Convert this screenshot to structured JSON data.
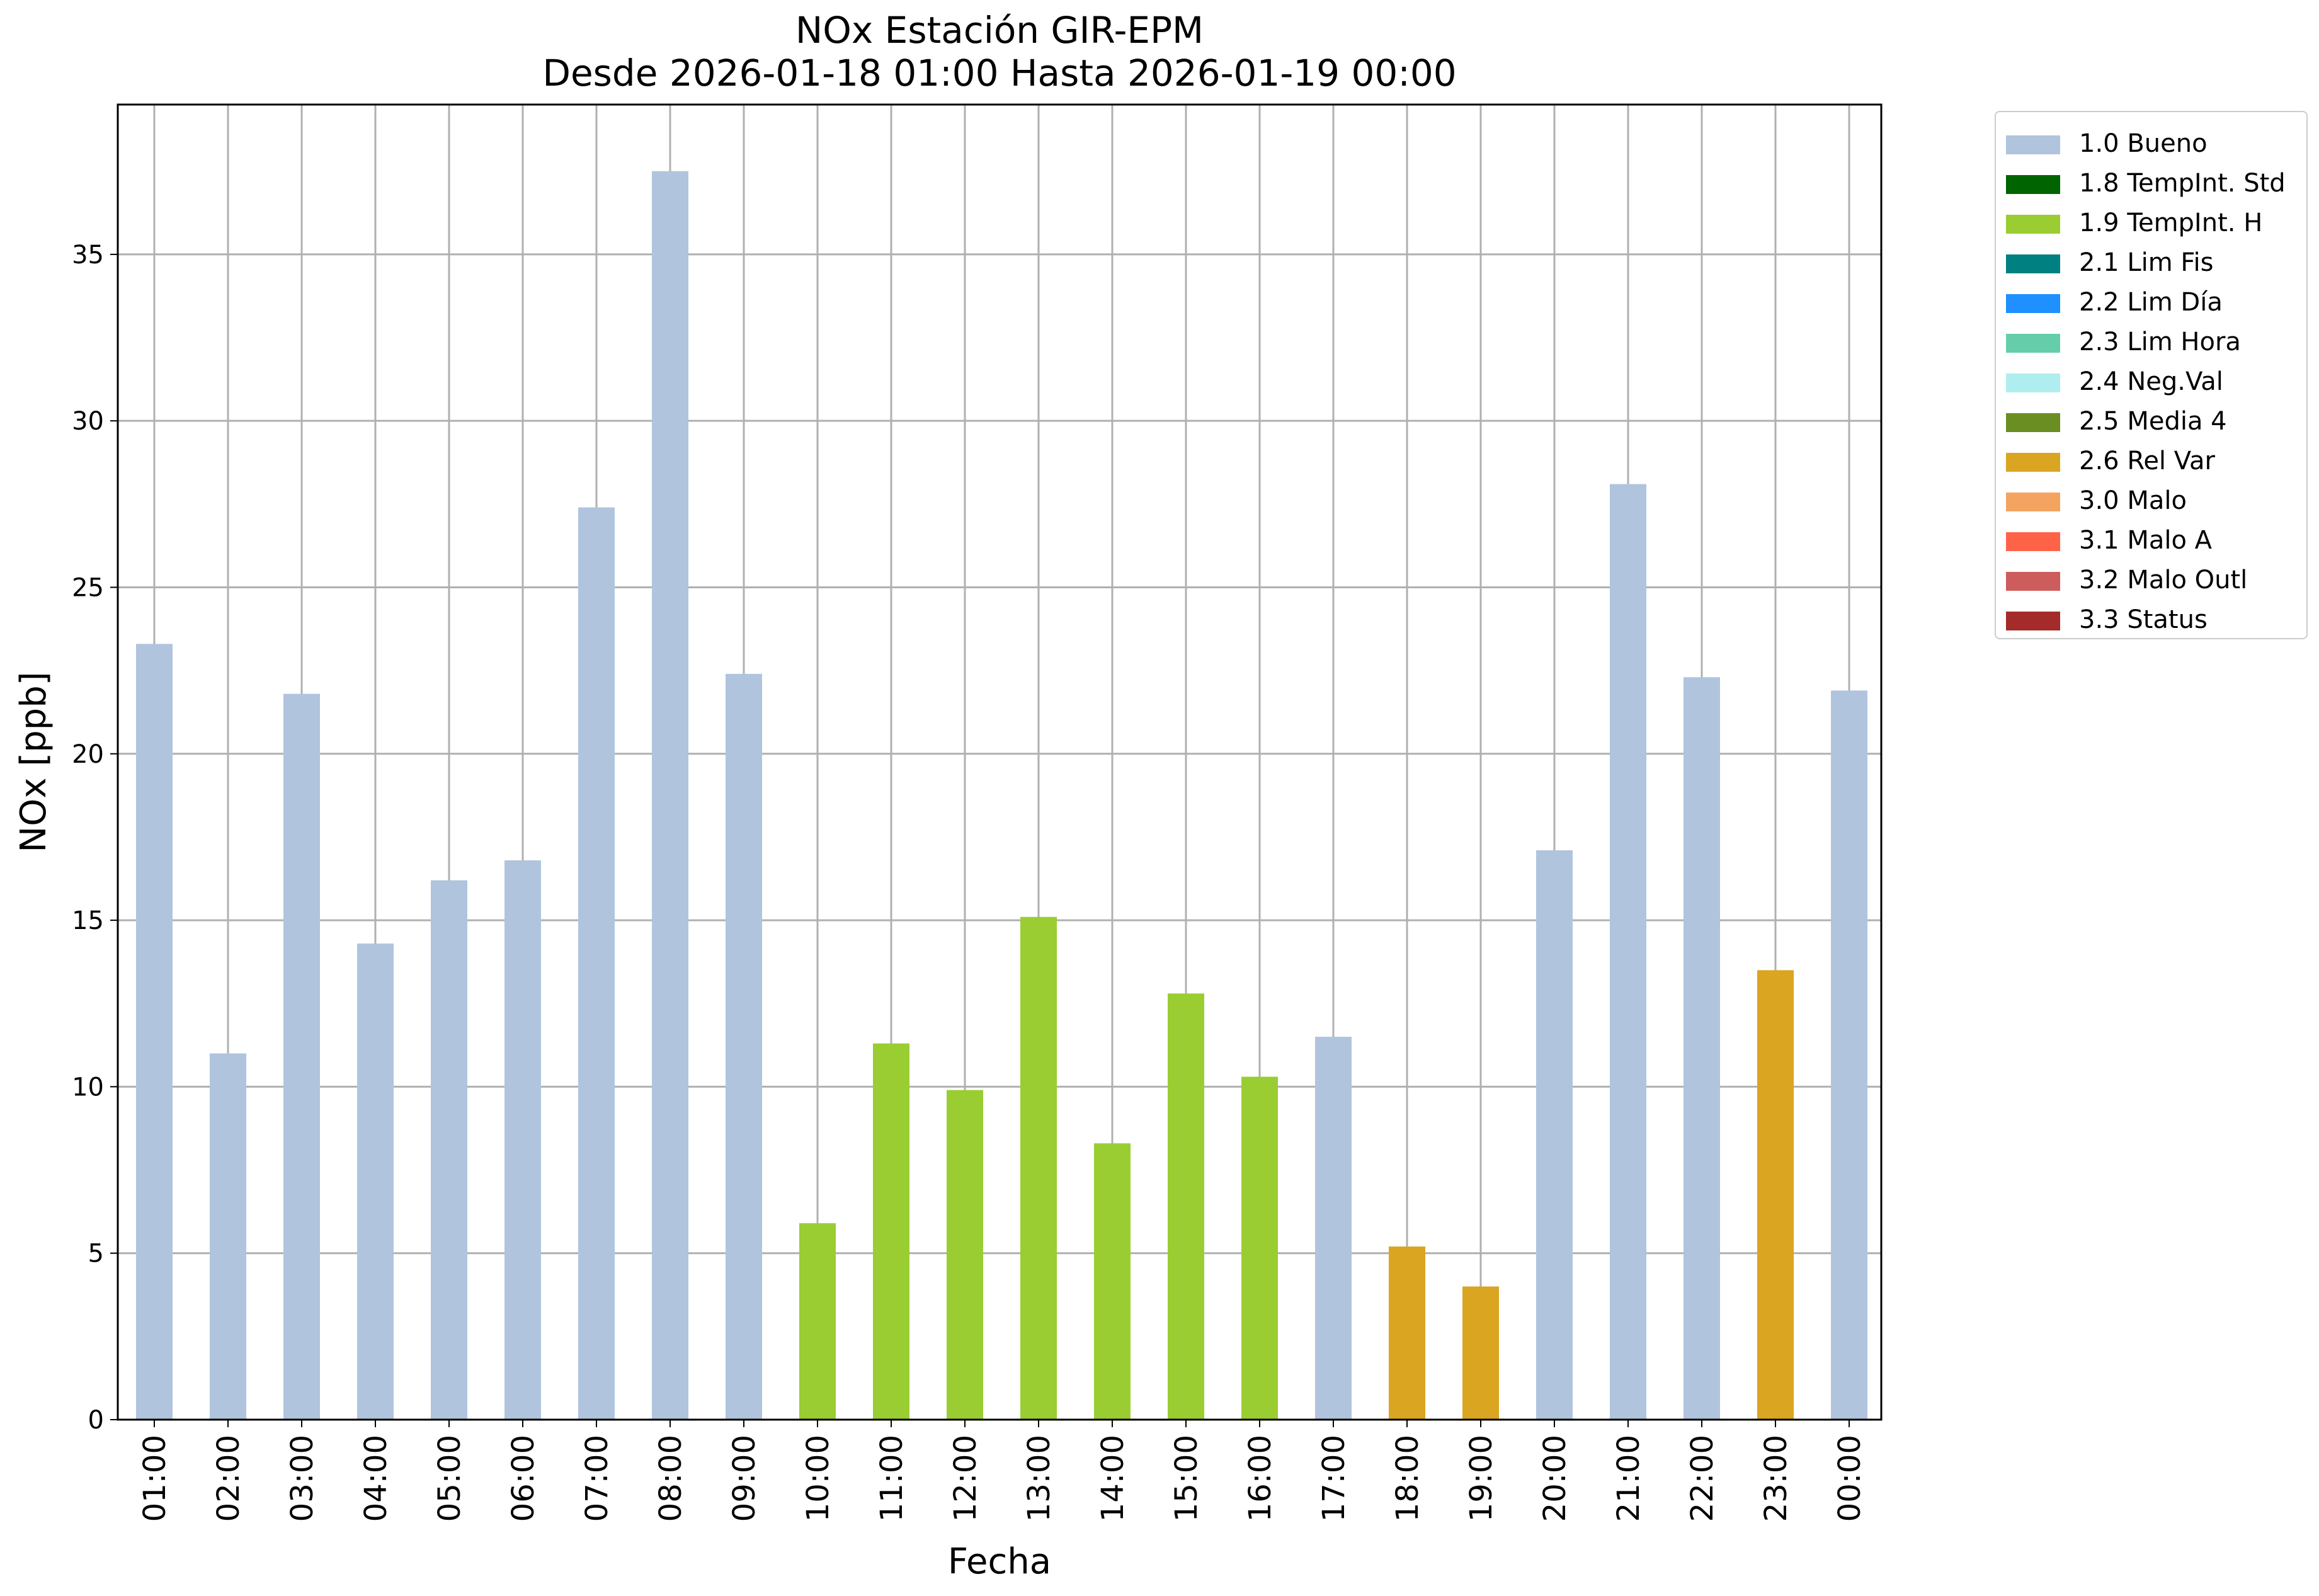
{
  "chart_data": {
    "type": "bar",
    "title": "NOx Estación GIR-EPM",
    "subtitle": "Desde 2026-01-18 01:00 Hasta 2026-01-19 00:00",
    "xlabel": "Fecha",
    "ylabel": "NOx [ppb]",
    "ylim": [
      0,
      39.5
    ],
    "yticks": [
      "0",
      "5",
      "10",
      "15",
      "20",
      "25",
      "30",
      "35"
    ],
    "grid": true,
    "legend_position": "outside-top-right",
    "categories": [
      "01:00",
      "02:00",
      "03:00",
      "04:00",
      "05:00",
      "06:00",
      "07:00",
      "08:00",
      "09:00",
      "10:00",
      "11:00",
      "12:00",
      "13:00",
      "14:00",
      "15:00",
      "16:00",
      "17:00",
      "18:00",
      "19:00",
      "20:00",
      "21:00",
      "22:00",
      "23:00",
      "00:00"
    ],
    "values": [
      23.3,
      11.0,
      21.8,
      14.3,
      16.2,
      16.8,
      27.4,
      37.5,
      22.4,
      5.9,
      11.3,
      9.9,
      15.1,
      8.3,
      12.8,
      10.3,
      11.5,
      5.2,
      4.0,
      17.1,
      28.1,
      22.3,
      13.5,
      21.9
    ],
    "flags": [
      "1.0 Bueno",
      "1.0 Bueno",
      "1.0 Bueno",
      "1.0 Bueno",
      "1.0 Bueno",
      "1.0 Bueno",
      "1.0 Bueno",
      "1.0 Bueno",
      "1.0 Bueno",
      "1.9 TempInt. H",
      "1.9 TempInt. H",
      "1.9 TempInt. H",
      "1.9 TempInt. H",
      "1.9 TempInt. H",
      "1.9 TempInt. H",
      "1.9 TempInt. H",
      "1.0 Bueno",
      "2.6 Rel Var",
      "2.6 Rel Var",
      "1.0 Bueno",
      "1.0 Bueno",
      "1.0 Bueno",
      "2.6 Rel Var",
      "1.0 Bueno"
    ],
    "legend": [
      {
        "name": "1.0 Bueno",
        "color": "#b0c4de"
      },
      {
        "name": "1.8 TempInt. Std",
        "color": "#006400"
      },
      {
        "name": "1.9 TempInt. H",
        "color": "#9acd32"
      },
      {
        "name": "2.1 Lim Fis",
        "color": "#008080"
      },
      {
        "name": "2.2 Lim Día",
        "color": "#1e90ff"
      },
      {
        "name": "2.3 Lim Hora",
        "color": "#66cdaa"
      },
      {
        "name": "2.4 Neg.Val",
        "color": "#afeeee"
      },
      {
        "name": "2.5 Media 4",
        "color": "#6b8e23"
      },
      {
        "name": "2.6 Rel Var",
        "color": "#daa520"
      },
      {
        "name": "3.0 Malo",
        "color": "#f4a460"
      },
      {
        "name": "3.1 Malo A",
        "color": "#ff6347"
      },
      {
        "name": "3.2 Malo Outl",
        "color": "#cd5c5c"
      },
      {
        "name": "3.3 Status",
        "color": "#a52a2a"
      }
    ]
  }
}
